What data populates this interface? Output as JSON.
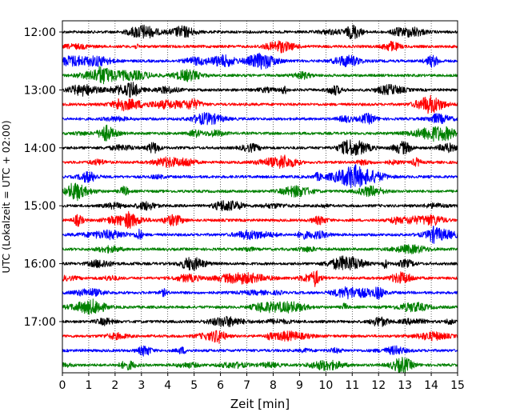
{
  "chart_data": {
    "type": "line",
    "title": "",
    "xlabel": "Zeit  [min]",
    "ylabel": "UTC (Lokalzeit = UTC + 02:00)",
    "xlim": [
      0,
      15
    ],
    "x_ticks": [
      "0",
      "1",
      "2",
      "3",
      "4",
      "5",
      "6",
      "7",
      "8",
      "9",
      "10",
      "11",
      "12",
      "13",
      "14",
      "15"
    ],
    "y_ticks": [
      "12:00",
      "13:00",
      "14:00",
      "15:00",
      "16:00",
      "17:00"
    ],
    "grid": "vertical-dotted",
    "trace_interval_minutes": 15,
    "trace_colors": [
      "#000000",
      "#ff0000",
      "#0000ff",
      "#008000"
    ],
    "traces": [
      {
        "start": "12:00",
        "color": "#000000"
      },
      {
        "start": "12:15",
        "color": "#ff0000"
      },
      {
        "start": "12:30",
        "color": "#0000ff"
      },
      {
        "start": "12:45",
        "color": "#008000"
      },
      {
        "start": "13:00",
        "color": "#000000"
      },
      {
        "start": "13:15",
        "color": "#ff0000"
      },
      {
        "start": "13:30",
        "color": "#0000ff"
      },
      {
        "start": "13:45",
        "color": "#008000"
      },
      {
        "start": "14:00",
        "color": "#000000"
      },
      {
        "start": "14:15",
        "color": "#ff0000"
      },
      {
        "start": "14:30",
        "color": "#0000ff"
      },
      {
        "start": "14:45",
        "color": "#008000"
      },
      {
        "start": "15:00",
        "color": "#000000"
      },
      {
        "start": "15:15",
        "color": "#ff0000"
      },
      {
        "start": "15:30",
        "color": "#0000ff"
      },
      {
        "start": "15:45",
        "color": "#008000"
      },
      {
        "start": "16:00",
        "color": "#000000"
      },
      {
        "start": "16:15",
        "color": "#ff0000"
      },
      {
        "start": "16:30",
        "color": "#0000ff"
      },
      {
        "start": "16:45",
        "color": "#008000"
      },
      {
        "start": "17:00",
        "color": "#000000"
      },
      {
        "start": "17:15",
        "color": "#ff0000"
      },
      {
        "start": "17:30",
        "color": "#0000ff"
      },
      {
        "start": "17:45",
        "color": "#008000"
      }
    ]
  }
}
